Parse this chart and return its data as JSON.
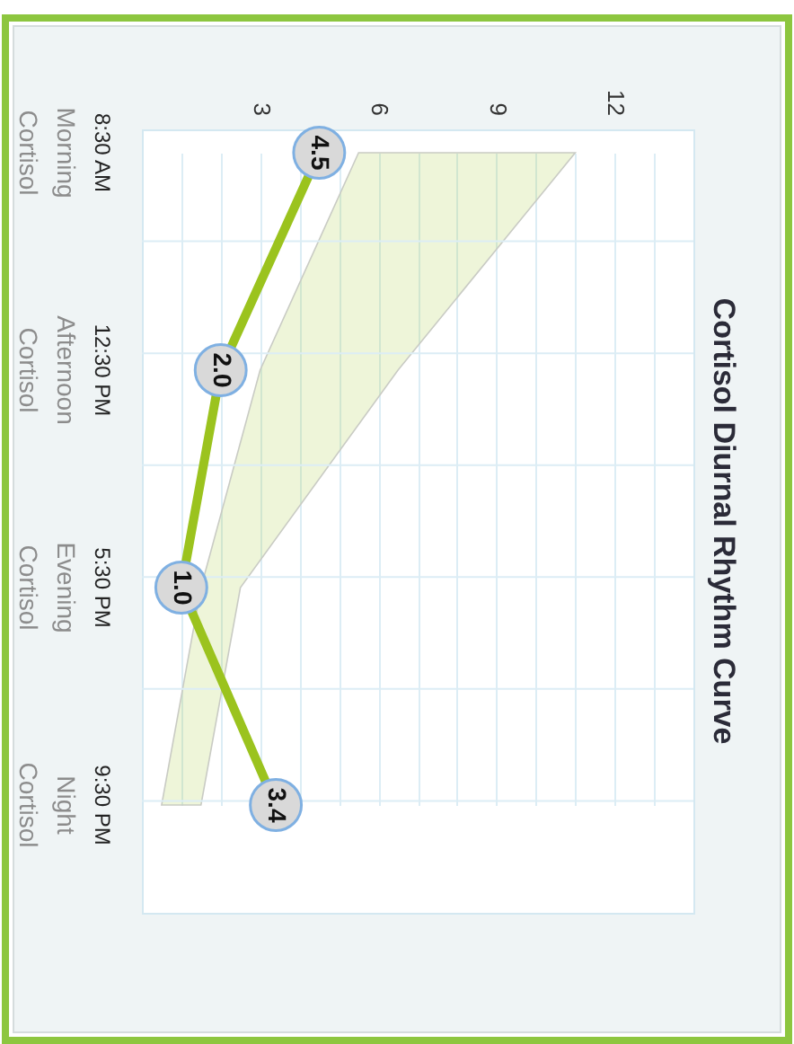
{
  "chart_data": {
    "type": "line",
    "title": "Cortisol Diurnal Rhythm Curve",
    "orientation": "horizontal",
    "categories": [
      "8:30 AM\nMorning\nCortisol",
      "12:30 PM\nAfternoon\nCortisol",
      "5:30 PM\nEvening\nCortisol",
      "9:30 PM\nNight\nCortisol"
    ],
    "series": [
      {
        "color": "#9bc31e",
        "values": [
          4.5,
          2.0,
          1.0,
          3.4
        ],
        "value_labels": [
          "4.5",
          "2.0",
          "1.0",
          "3.4"
        ],
        "lower": [
          5.5,
          3,
          1.5,
          0.5
        ],
        "upper": [
          11,
          6.5,
          2.5,
          1.5
        ]
      }
    ],
    "xlim": [
      0,
      14
    ],
    "xticks": [
      {
        "value": 1,
        "label": null
      },
      {
        "value": 2,
        "label": null
      },
      3,
      {
        "value": 4,
        "label": null
      },
      {
        "value": 5,
        "label": null
      },
      6,
      {
        "value": 7,
        "label": null
      },
      {
        "value": 8,
        "label": null
      },
      9,
      {
        "value": 10,
        "label": null
      },
      {
        "value": 11,
        "label": null
      },
      12,
      {
        "value": 13,
        "label": null
      }
    ],
    "grid": true,
    "marker": "circle",
    "line_style": "solid"
  }
}
